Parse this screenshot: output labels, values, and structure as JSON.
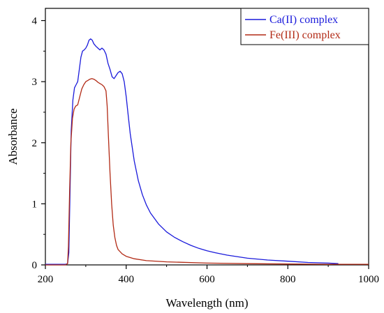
{
  "chart_data": {
    "type": "line",
    "title": "",
    "xlabel": "Wavelength (nm)",
    "ylabel": "Absorbance",
    "xlim": [
      200,
      1000
    ],
    "ylim": [
      0,
      4.2
    ],
    "xticks": [
      200,
      400,
      600,
      800,
      1000
    ],
    "yticks": [
      0,
      1,
      2,
      3,
      4
    ],
    "grid": false,
    "legend_position": "top-right",
    "series": [
      {
        "name": "Ca(II) complex",
        "color": "#1a1adb",
        "points": [
          [
            200,
            0.01
          ],
          [
            250,
            0.01
          ],
          [
            255,
            0.02
          ],
          [
            258,
            0.2
          ],
          [
            261,
            1.2
          ],
          [
            264,
            2.2
          ],
          [
            268,
            2.7
          ],
          [
            272,
            2.9
          ],
          [
            276,
            2.95
          ],
          [
            280,
            3.0
          ],
          [
            284,
            3.2
          ],
          [
            288,
            3.4
          ],
          [
            292,
            3.5
          ],
          [
            296,
            3.52
          ],
          [
            300,
            3.55
          ],
          [
            304,
            3.6
          ],
          [
            308,
            3.68
          ],
          [
            312,
            3.7
          ],
          [
            316,
            3.68
          ],
          [
            320,
            3.62
          ],
          [
            325,
            3.58
          ],
          [
            330,
            3.55
          ],
          [
            335,
            3.52
          ],
          [
            340,
            3.55
          ],
          [
            345,
            3.52
          ],
          [
            350,
            3.45
          ],
          [
            355,
            3.3
          ],
          [
            360,
            3.2
          ],
          [
            365,
            3.08
          ],
          [
            370,
            3.05
          ],
          [
            375,
            3.1
          ],
          [
            380,
            3.15
          ],
          [
            385,
            3.17
          ],
          [
            390,
            3.13
          ],
          [
            395,
            3.0
          ],
          [
            400,
            2.75
          ],
          [
            405,
            2.45
          ],
          [
            410,
            2.15
          ],
          [
            420,
            1.7
          ],
          [
            430,
            1.38
          ],
          [
            440,
            1.15
          ],
          [
            450,
            0.98
          ],
          [
            460,
            0.85
          ],
          [
            480,
            0.67
          ],
          [
            500,
            0.54
          ],
          [
            520,
            0.45
          ],
          [
            540,
            0.38
          ],
          [
            560,
            0.32
          ],
          [
            580,
            0.27
          ],
          [
            600,
            0.23
          ],
          [
            620,
            0.2
          ],
          [
            650,
            0.16
          ],
          [
            700,
            0.11
          ],
          [
            750,
            0.08
          ],
          [
            800,
            0.06
          ],
          [
            850,
            0.04
          ],
          [
            900,
            0.03
          ],
          [
            925,
            0.02
          ]
        ]
      },
      {
        "name": "Fe(III) complex",
        "color": "#b22a15",
        "points": [
          [
            200,
            0.0
          ],
          [
            250,
            0.0
          ],
          [
            255,
            0.02
          ],
          [
            257,
            0.3
          ],
          [
            260,
            1.2
          ],
          [
            263,
            2.0
          ],
          [
            267,
            2.4
          ],
          [
            271,
            2.55
          ],
          [
            275,
            2.6
          ],
          [
            280,
            2.62
          ],
          [
            285,
            2.75
          ],
          [
            290,
            2.88
          ],
          [
            295,
            2.95
          ],
          [
            300,
            3.0
          ],
          [
            305,
            3.02
          ],
          [
            310,
            3.04
          ],
          [
            315,
            3.05
          ],
          [
            320,
            3.04
          ],
          [
            325,
            3.02
          ],
          [
            330,
            2.99
          ],
          [
            335,
            2.97
          ],
          [
            340,
            2.95
          ],
          [
            345,
            2.92
          ],
          [
            350,
            2.85
          ],
          [
            353,
            2.6
          ],
          [
            356,
            2.1
          ],
          [
            360,
            1.5
          ],
          [
            364,
            1.0
          ],
          [
            368,
            0.65
          ],
          [
            372,
            0.45
          ],
          [
            376,
            0.32
          ],
          [
            380,
            0.25
          ],
          [
            390,
            0.18
          ],
          [
            400,
            0.14
          ],
          [
            420,
            0.1
          ],
          [
            450,
            0.07
          ],
          [
            500,
            0.05
          ],
          [
            600,
            0.03
          ],
          [
            700,
            0.02
          ],
          [
            800,
            0.015
          ],
          [
            900,
            0.01
          ],
          [
            1000,
            0.01
          ]
        ]
      }
    ]
  }
}
